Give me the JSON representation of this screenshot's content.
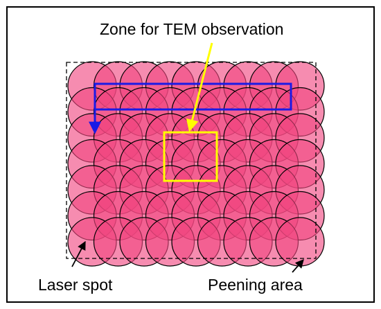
{
  "labels": {
    "zone": "Zone for TEM observation",
    "laser_spot": "Laser spot",
    "peening_area": "Peening area"
  },
  "spot_grid": {
    "rows": 7,
    "cols": 9
  },
  "colors": {
    "spot_fill": "#f0467f",
    "spot_fill_opacity": 0.62,
    "spot_stroke": "#000000",
    "path": "#1a1ae6",
    "zone_box": "#ffff00",
    "zone_arrow": "#ffff00",
    "frame": "#000000",
    "peening_border": "#000000"
  }
}
